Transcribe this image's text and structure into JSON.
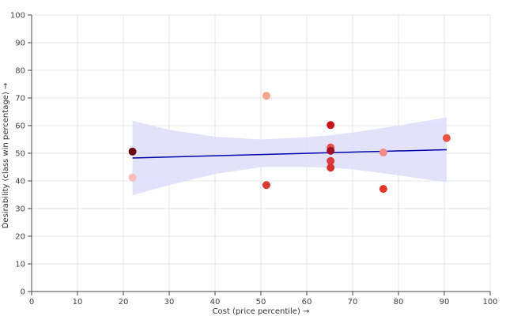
{
  "chart_data": {
    "type": "scatter",
    "title": "",
    "xlabel": "Cost (price percentile) →",
    "ylabel": "Desirability (class win percentage) →",
    "xlim": [
      0,
      100
    ],
    "ylim": [
      0,
      100
    ],
    "x_ticks": [
      0,
      10,
      20,
      30,
      40,
      50,
      60,
      70,
      80,
      90,
      100
    ],
    "y_ticks": [
      0,
      10,
      20,
      30,
      40,
      50,
      60,
      70,
      80,
      90,
      100
    ],
    "grid": true,
    "points": [
      {
        "x": 22.0,
        "y": 50.6,
        "color": "#6b0010"
      },
      {
        "x": 22.0,
        "y": 41.2,
        "color": "#fbbdb6"
      },
      {
        "x": 51.2,
        "y": 70.8,
        "color": "#f4a68a"
      },
      {
        "x": 51.2,
        "y": 38.5,
        "color": "#d93a32"
      },
      {
        "x": 65.2,
        "y": 60.2,
        "color": "#c8151d"
      },
      {
        "x": 65.2,
        "y": 52.1,
        "color": "#e74b4b"
      },
      {
        "x": 65.2,
        "y": 50.9,
        "color": "#a01025"
      },
      {
        "x": 65.2,
        "y": 47.2,
        "color": "#dc3a3a"
      },
      {
        "x": 65.2,
        "y": 44.8,
        "color": "#d83131"
      },
      {
        "x": 76.7,
        "y": 50.3,
        "color": "#f08a8a"
      },
      {
        "x": 76.7,
        "y": 37.1,
        "color": "#e0362c"
      },
      {
        "x": 90.5,
        "y": 55.5,
        "color": "#e65545"
      }
    ],
    "trendline": {
      "x": [
        22.0,
        90.5
      ],
      "y": [
        48.3,
        51.3
      ],
      "color": "#0000aa"
    },
    "confidence_band": {
      "x": [
        22.0,
        30.0,
        40.0,
        50.0,
        60.0,
        65.0,
        70.0,
        80.0,
        90.5
      ],
      "upper": [
        61.8,
        58.5,
        56.0,
        55.0,
        55.8,
        56.5,
        57.5,
        60.0,
        63.0
      ],
      "lower": [
        34.8,
        38.5,
        42.5,
        45.0,
        45.0,
        44.8,
        44.2,
        42.0,
        39.5
      ],
      "color": "#ddddfa"
    }
  }
}
